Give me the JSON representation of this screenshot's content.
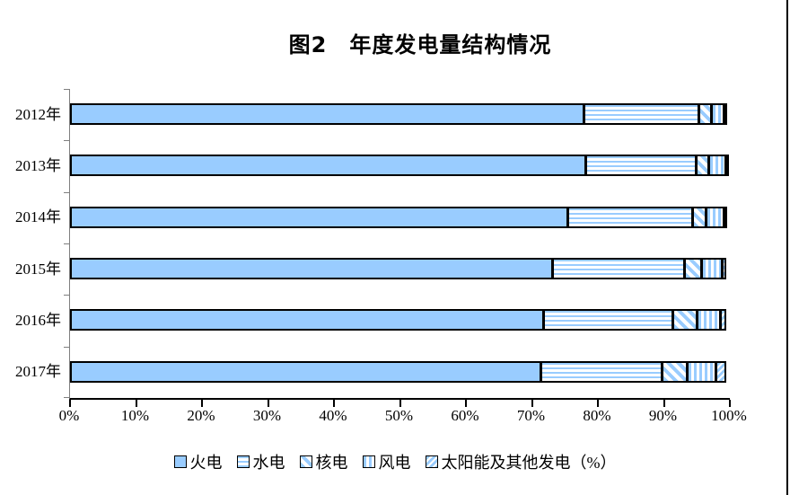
{
  "title": "图2　年度发电量结构情况",
  "chart_data": {
    "type": "bar",
    "stacked": true,
    "orientation": "horizontal",
    "title": "图2　年度发电量结构情况",
    "categories": [
      "2012年",
      "2013年",
      "2014年",
      "2015年",
      "2016年",
      "2017年"
    ],
    "series": [
      {
        "name": "火电",
        "pattern": "solid",
        "values": [
          78.0,
          78.2,
          75.5,
          73.2,
          71.8,
          71.4
        ]
      },
      {
        "name": "水电",
        "pattern": "horizontal-stripes",
        "values": [
          17.5,
          16.9,
          19.0,
          20.1,
          19.8,
          18.6
        ]
      },
      {
        "name": "核电",
        "pattern": "diagonal-down",
        "values": [
          2.0,
          2.1,
          2.3,
          2.7,
          3.8,
          3.9
        ]
      },
      {
        "name": "风电",
        "pattern": "vertical-stripes",
        "values": [
          2.1,
          2.6,
          2.8,
          3.3,
          3.6,
          4.5
        ]
      },
      {
        "name": "太阳能及其他发电（%）",
        "pattern": "diagonal-up",
        "values": [
          0.4,
          0.2,
          0.4,
          0.7,
          1.0,
          1.6
        ]
      }
    ],
    "x_tick_labels": [
      "0%",
      "10%",
      "20%",
      "30%",
      "40%",
      "50%",
      "60%",
      "70%",
      "80%",
      "90%",
      "100%"
    ],
    "xlim": [
      0,
      100
    ],
    "grid": false,
    "legend_position": "bottom",
    "colors": {
      "bar_fill": "#99CCFF",
      "bar_border": "#000000",
      "axis": "#7F7F7F",
      "x_axis": "#000000",
      "text": "#000000",
      "background": "#FFFFFF"
    }
  }
}
